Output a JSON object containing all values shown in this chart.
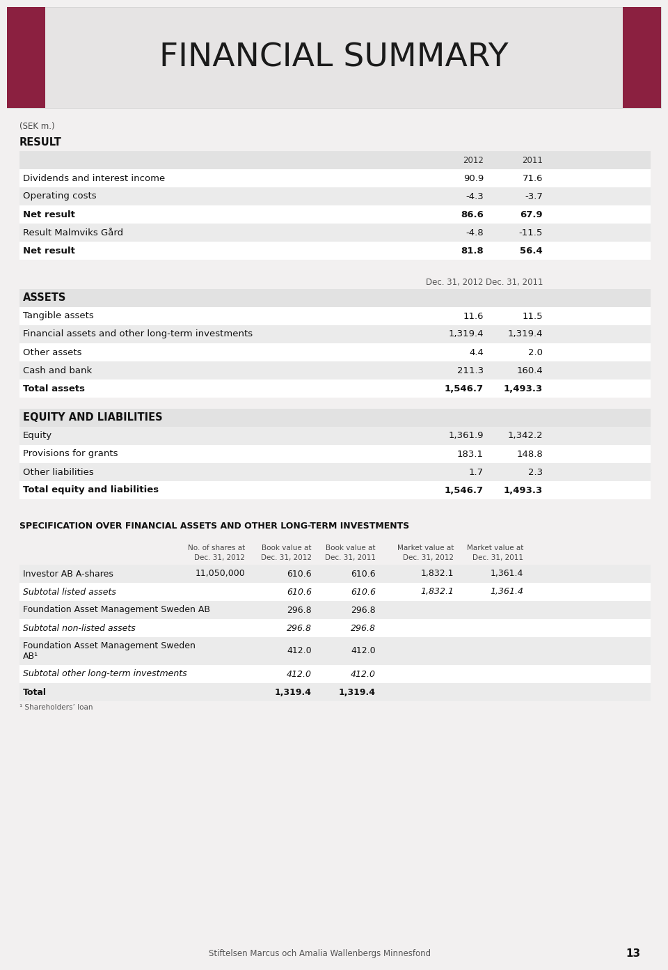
{
  "title": "FINANCIAL SUMMARY",
  "title_color": "#1a1a1a",
  "bg_color": "#f2f0f0",
  "sidebar_color": "#8b2040",
  "banner_bg": "#e6e4e4",
  "unit_label": "(SEK m.)",
  "sections": [
    {
      "header": "RESULT",
      "col_headers": [
        "",
        "2012",
        "2011"
      ],
      "rows": [
        {
          "label": "Dividends and interest income",
          "v2012": "90.9",
          "v2011": "71.6",
          "bold": false,
          "bg": "#ffffff"
        },
        {
          "label": "Operating costs",
          "v2012": "-4.3",
          "v2011": "-3.7",
          "bold": false,
          "bg": "#ebebeb"
        },
        {
          "label": "Net result",
          "v2012": "86.6",
          "v2011": "67.9",
          "bold": true,
          "bg": "#ffffff"
        },
        {
          "label": "Result Malmviks Gård",
          "v2012": "-4.8",
          "v2011": "-11.5",
          "bold": false,
          "bg": "#ebebeb"
        },
        {
          "label": "Net result",
          "v2012": "81.8",
          "v2011": "56.4",
          "bold": true,
          "bg": "#ffffff"
        }
      ]
    },
    {
      "header": "ASSETS",
      "col_headers": [
        "",
        "Dec. 31, 2012",
        "Dec. 31, 2011"
      ],
      "rows": [
        {
          "label": "Tangible assets",
          "v2012": "11.6",
          "v2011": "11.5",
          "bold": false,
          "bg": "#ffffff"
        },
        {
          "label": "Financial assets and other long-term investments",
          "v2012": "1,319.4",
          "v2011": "1,319.4",
          "bold": false,
          "bg": "#ebebeb"
        },
        {
          "label": "Other assets",
          "v2012": "4.4",
          "v2011": "2.0",
          "bold": false,
          "bg": "#ffffff"
        },
        {
          "label": "Cash and bank",
          "v2012": "211.3",
          "v2011": "160.4",
          "bold": false,
          "bg": "#ebebeb"
        },
        {
          "label": "Total assets",
          "v2012": "1,546.7",
          "v2011": "1,493.3",
          "bold": true,
          "bg": "#ffffff"
        }
      ]
    },
    {
      "header": "EQUITY AND LIABILITIES",
      "col_headers": null,
      "rows": [
        {
          "label": "Equity",
          "v2012": "1,361.9",
          "v2011": "1,342.2",
          "bold": false,
          "bg": "#ebebeb"
        },
        {
          "label": "Provisions for grants",
          "v2012": "183.1",
          "v2011": "148.8",
          "bold": false,
          "bg": "#ffffff"
        },
        {
          "label": "Other liabilities",
          "v2012": "1.7",
          "v2011": "2.3",
          "bold": false,
          "bg": "#ebebeb"
        },
        {
          "label": "Total equity and liabilities",
          "v2012": "1,546.7",
          "v2011": "1,493.3",
          "bold": true,
          "bg": "#ffffff"
        }
      ]
    }
  ],
  "spec_section": {
    "header": "SPECIFICATION OVER FINANCIAL ASSETS AND OTHER LONG-TERM INVESTMENTS",
    "col_headers": [
      "No. of shares at\nDec. 31, 2012",
      "Book value at\nDec. 31, 2012",
      "Book value at\nDec. 31, 2011",
      "Market value at\nDec. 31, 2012",
      "Market value at\nDec. 31, 2011"
    ],
    "rows": [
      {
        "label": "Investor AB A-shares",
        "italic": false,
        "bold": false,
        "values": [
          "11,050,000",
          "610.6",
          "610.6",
          "1,832.1",
          "1,361.4"
        ],
        "bg": "#ebebeb",
        "tall": false
      },
      {
        "label": "Subtotal listed assets",
        "italic": true,
        "bold": false,
        "values": [
          "",
          "610.6",
          "610.6",
          "1,832.1",
          "1,361.4"
        ],
        "bg": "#ffffff",
        "tall": false
      },
      {
        "label": "Foundation Asset Management Sweden AB",
        "italic": false,
        "bold": false,
        "values": [
          "",
          "296.8",
          "296.8",
          "",
          ""
        ],
        "bg": "#ebebeb",
        "tall": false
      },
      {
        "label": "Subtotal non-listed assets",
        "italic": true,
        "bold": false,
        "values": [
          "",
          "296.8",
          "296.8",
          "",
          ""
        ],
        "bg": "#ffffff",
        "tall": false
      },
      {
        "label": "Foundation Asset Management Sweden\nAB¹",
        "italic": false,
        "bold": false,
        "values": [
          "",
          "412.0",
          "412.0",
          "",
          ""
        ],
        "bg": "#ebebeb",
        "tall": true
      },
      {
        "label": "Subtotal other long-term investments",
        "italic": true,
        "bold": false,
        "values": [
          "",
          "412.0",
          "412.0",
          "",
          ""
        ],
        "bg": "#ffffff",
        "tall": false
      },
      {
        "label": "Total",
        "italic": false,
        "bold": true,
        "values": [
          "",
          "1,319.4",
          "1,319.4",
          "",
          ""
        ],
        "bg": "#ebebeb",
        "tall": false
      }
    ],
    "footnote": "¹ Shareholders’ loan"
  },
  "footer_text": "Stiftelsen Marcus och Amalia Wallenbergs Minnesfond",
  "page_number": "13"
}
